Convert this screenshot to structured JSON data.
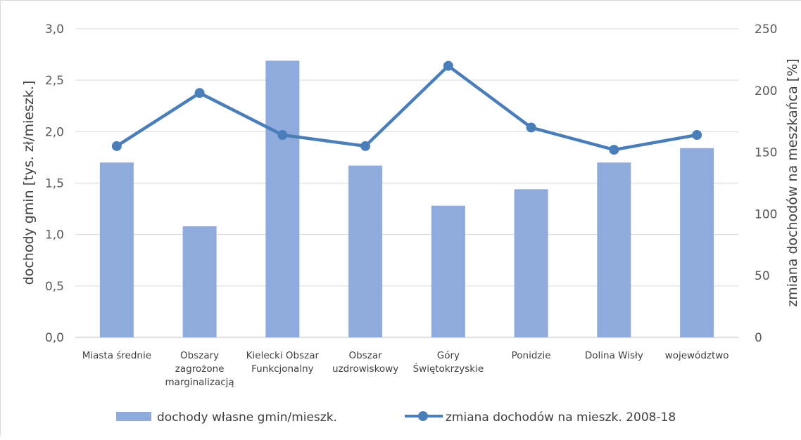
{
  "chart_data": {
    "type": "bar+line",
    "categories": [
      [
        "Miasta średnie"
      ],
      [
        "Obszary",
        "zagrożone",
        "marginalizacją"
      ],
      [
        "Kielecki Obszar",
        "Funkcjonalny"
      ],
      [
        "Obszar",
        "uzdrowiskowy"
      ],
      [
        "Góry",
        "Świętokrzyskie"
      ],
      [
        "Ponidzie"
      ],
      [
        "Dolina Wisły"
      ],
      [
        "województwo"
      ]
    ],
    "series": [
      {
        "name": "dochody własne gmin/mieszk.",
        "type": "bar",
        "axis": "left",
        "color": "#8faadc",
        "values": [
          1.7,
          1.08,
          2.69,
          1.67,
          1.28,
          1.44,
          1.7,
          1.84
        ]
      },
      {
        "name": "zmiana dochodów na mieszk. 2008-18",
        "type": "line",
        "axis": "right",
        "color": "#4a7ebb",
        "values": [
          155,
          198,
          164,
          155,
          220,
          170,
          152,
          164
        ]
      }
    ],
    "y_left": {
      "label": "dochody gmin [tys. zł/mieszk.]",
      "range": [
        0,
        3
      ],
      "ticks": [
        "0,0",
        "0,5",
        "1,0",
        "1,5",
        "2,0",
        "2,5",
        "3,0"
      ]
    },
    "y_right": {
      "label": "zmiana dochodów na meszkańca [%]",
      "range": [
        0,
        250
      ],
      "ticks": [
        "0",
        "50",
        "100",
        "150",
        "200",
        "250"
      ]
    },
    "grid": true,
    "legend_position": "bottom"
  }
}
